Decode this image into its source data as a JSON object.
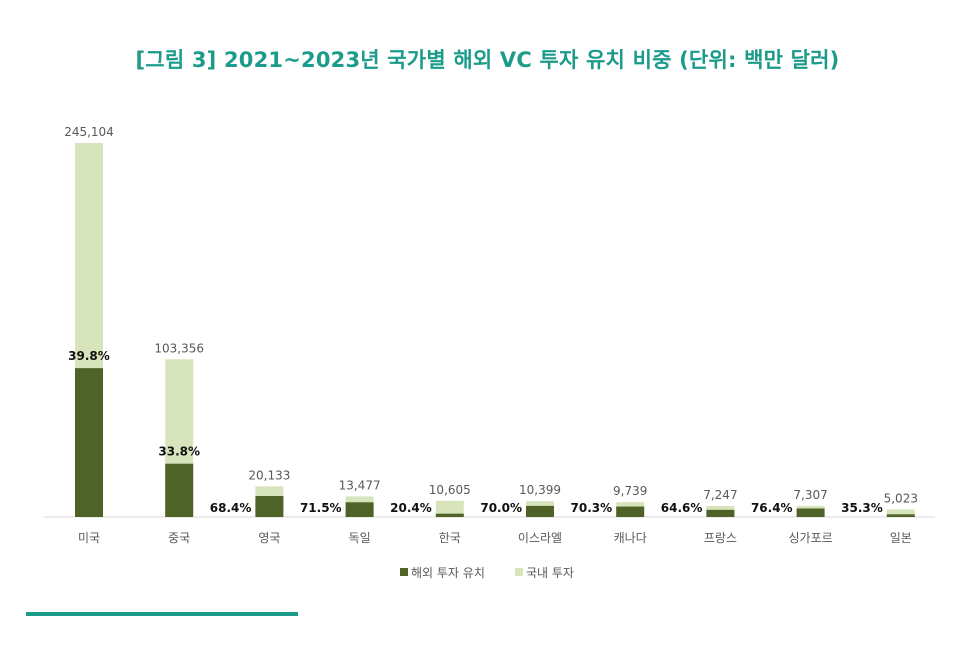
{
  "title": "[그림 3] 2021~2023년 국가별 해외 VC 투자 유치 비중 (단위: 백만 달러)",
  "chart_data": {
    "type": "bar",
    "stacked": true,
    "categories": [
      "미국",
      "중국",
      "영국",
      "독일",
      "한국",
      "이스라엘",
      "캐나다",
      "프랑스",
      "싱가포르",
      "일본"
    ],
    "totals": [
      245104,
      103356,
      20133,
      13477,
      10605,
      10399,
      9739,
      7247,
      7307,
      5023
    ],
    "total_labels": [
      "245,104",
      "103,356",
      "20,133",
      "13,477",
      "10,605",
      "10,399",
      "9,739",
      "7,247",
      "7,307",
      "5,023"
    ],
    "foreign_share_pct": [
      39.8,
      33.8,
      68.4,
      71.5,
      20.4,
      70.0,
      70.3,
      64.6,
      76.4,
      35.3
    ],
    "foreign_share_labels": [
      "39.8%",
      "33.8%",
      "68.4%",
      "71.5%",
      "20.4%",
      "70.0%",
      "70.3%",
      "64.6%",
      "76.4%",
      "35.3%"
    ],
    "series": [
      {
        "name": "해외 투자 유치",
        "color": "#4f6228"
      },
      {
        "name": "국내 투자",
        "color": "#d8e4bc"
      }
    ],
    "ylim": [
      0,
      245104
    ],
    "legend_position": "bottom"
  }
}
